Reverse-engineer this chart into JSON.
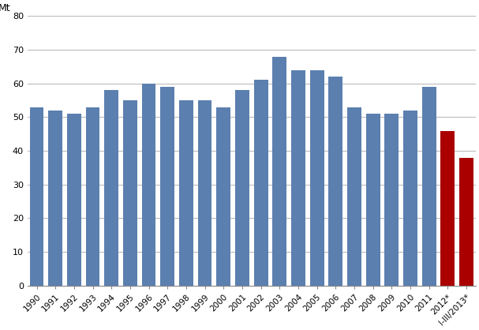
{
  "categories": [
    "1990",
    "1991",
    "1992",
    "1993",
    "1994",
    "1995",
    "1996",
    "1997",
    "1998",
    "1999",
    "2000",
    "2001",
    "2002",
    "2003",
    "2004",
    "2005",
    "2006",
    "2007",
    "2008",
    "2009",
    "2010",
    "2011",
    "2012*",
    "I-III/2013*"
  ],
  "values": [
    53,
    52,
    51,
    53,
    58,
    55,
    60,
    59,
    55,
    55,
    53,
    58,
    61,
    68,
    64,
    64,
    62,
    53,
    51,
    51,
    52,
    59,
    46,
    38
  ],
  "bar_colors": [
    "#5b7faf",
    "#5b7faf",
    "#5b7faf",
    "#5b7faf",
    "#5b7faf",
    "#5b7faf",
    "#5b7faf",
    "#5b7faf",
    "#5b7faf",
    "#5b7faf",
    "#5b7faf",
    "#5b7faf",
    "#5b7faf",
    "#5b7faf",
    "#5b7faf",
    "#5b7faf",
    "#5b7faf",
    "#5b7faf",
    "#5b7faf",
    "#5b7faf",
    "#5b7faf",
    "#5b7faf",
    "#aa0000",
    "#aa0000"
  ],
  "ylabel": "Mt",
  "ylim": [
    0,
    80
  ],
  "yticks": [
    0,
    10,
    20,
    30,
    40,
    50,
    60,
    70,
    80
  ],
  "background_color": "#ffffff",
  "grid_color": "#bbbbbb",
  "bar_edge_color": "none",
  "bar_width": 0.75,
  "figsize": [
    6.07,
    4.18
  ],
  "dpi": 100
}
